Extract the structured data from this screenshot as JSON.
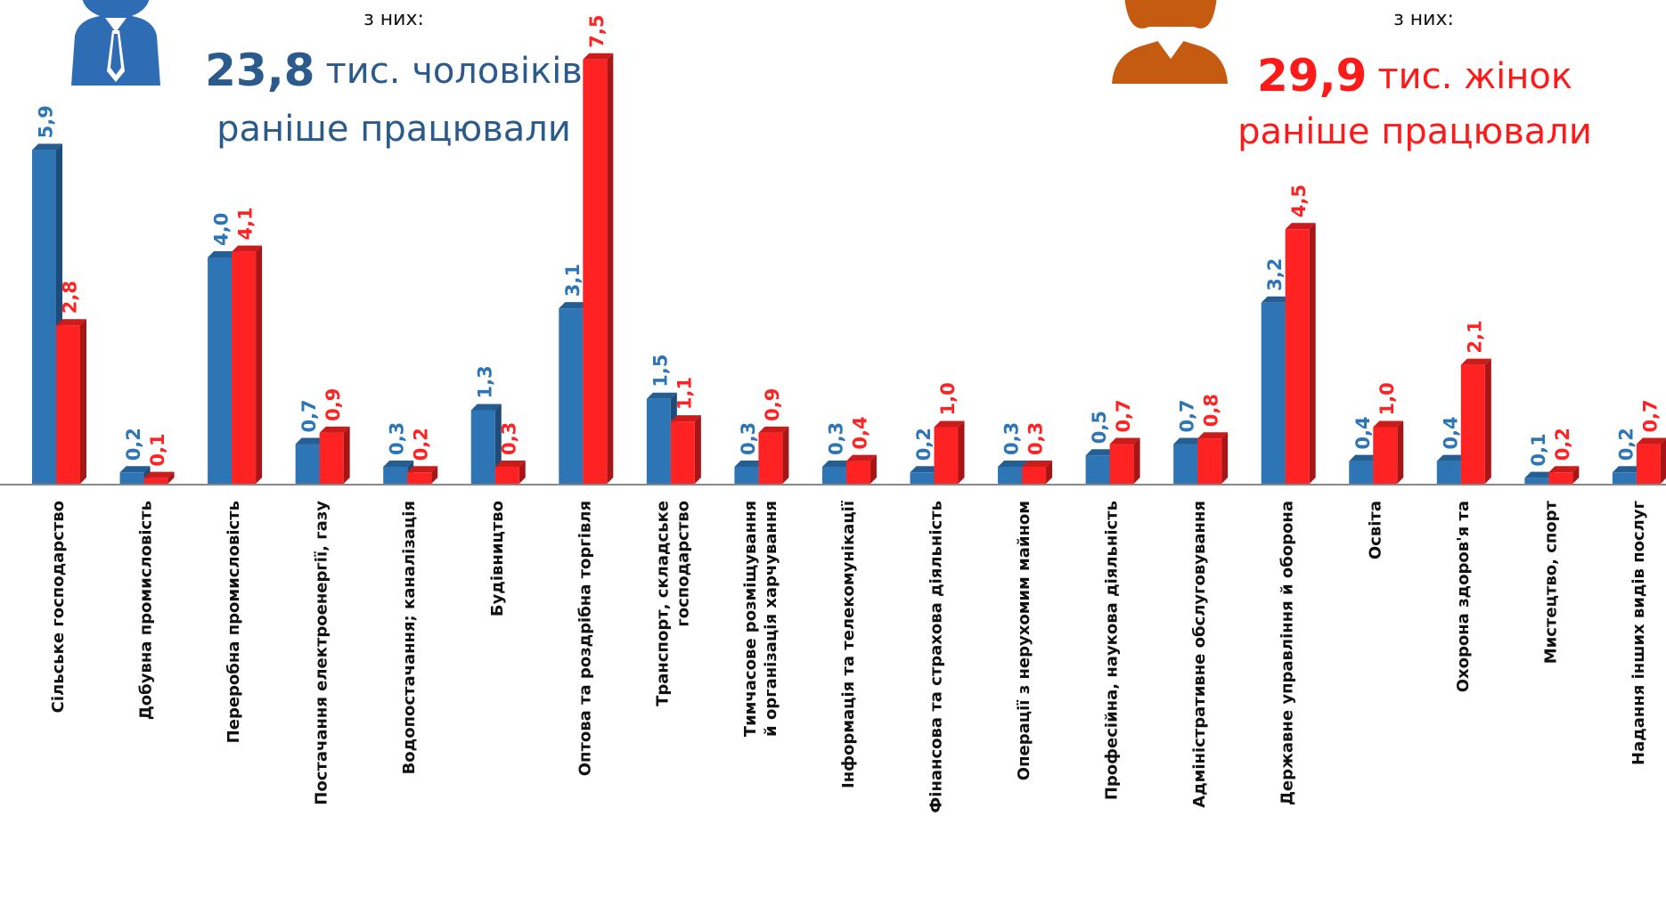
{
  "chart_data": {
    "type": "bar",
    "annotations": [
      {
        "intro": "з них:",
        "number": "23,8",
        "unit": "тис. чоловіків",
        "note": "раніше працювали",
        "color": "#2b5a8c"
      },
      {
        "intro": "з них:",
        "number": "29,9",
        "unit": "тис. жінок",
        "note": "раніше працювали",
        "color": "#ff1a1a"
      }
    ],
    "categories": [
      "Сільське господарство",
      "Добувна промисловість",
      "Переробна промисловість",
      "Постачання електроенергії, газу",
      "Водопостачання; каналізація",
      "Будівництво",
      "Оптова та роздрібна торгівля",
      "Транспорт, складське\nгосподарство",
      "Тимчасове розміщування\nй організація харчування",
      "Інформація та телекомунікації",
      "Фінансова та страхова діяльність",
      "Операції з нерухомим майном",
      "Професійна, наукова діяльність",
      "Адміністративне обслуговування",
      "Державне управління й оборона",
      "Освіта",
      "Охорона здоров'я та",
      "Мистецтво, спорт",
      "Надання інших видів послуг"
    ],
    "series": [
      {
        "color": "#2e75b6",
        "values": [
          5.9,
          0.2,
          4.0,
          0.7,
          0.3,
          1.3,
          3.1,
          1.5,
          0.3,
          0.3,
          0.2,
          0.3,
          0.5,
          0.7,
          3.2,
          0.4,
          0.4,
          0.1,
          0.2
        ],
        "value_labels": [
          "5,9",
          "0,2",
          "4,0",
          "0,7",
          "0,3",
          "1,3",
          "3,1",
          "1,5",
          "0,3",
          "0,3",
          "0,2",
          "0,3",
          "0,5",
          "0,7",
          "3,2",
          "0,4",
          "0,4",
          "0,1",
          "0,2"
        ]
      },
      {
        "color": "#ff2222",
        "values": [
          2.8,
          0.1,
          4.1,
          0.9,
          0.2,
          0.3,
          7.5,
          1.1,
          0.9,
          0.4,
          1.0,
          0.3,
          0.7,
          0.8,
          4.5,
          1.0,
          2.1,
          0.2,
          0.7
        ],
        "value_labels": [
          "2,8",
          "0,1",
          "4,1",
          "0,9",
          "0,2",
          "0,3",
          "7,5",
          "1,1",
          "0,9",
          "0,4",
          "1,0",
          "0,3",
          "0,7",
          "0,8",
          "4,5",
          "1,0",
          "2,1",
          "0,2",
          "0,7"
        ]
      }
    ]
  }
}
